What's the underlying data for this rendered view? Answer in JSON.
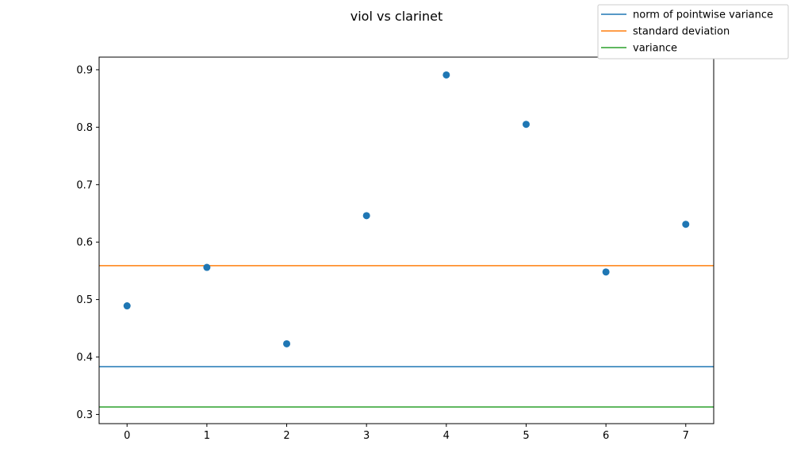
{
  "chart_data": {
    "type": "scatter",
    "title": "viol vs clarinet",
    "xlabel": "",
    "ylabel": "",
    "xlim": [
      -0.35,
      7.35
    ],
    "ylim": [
      0.284,
      0.922
    ],
    "xticks": [
      "0",
      "1",
      "2",
      "3",
      "4",
      "5",
      "6",
      "7"
    ],
    "yticks": [
      "0.3",
      "0.4",
      "0.5",
      "0.6",
      "0.7",
      "0.8",
      "0.9"
    ],
    "grid": false,
    "legend_position": "top-right",
    "points": {
      "color": "#1f77b4",
      "x": [
        0,
        1,
        2,
        3,
        4,
        5,
        6,
        7
      ],
      "y": [
        0.489,
        0.556,
        0.423,
        0.646,
        0.891,
        0.805,
        0.548,
        0.631
      ]
    },
    "hlines": [
      {
        "name": "norm of pointwise variance",
        "y": 0.383,
        "color": "#1f77b4"
      },
      {
        "name": "standard deviation",
        "y": 0.559,
        "color": "#ff7f0e"
      },
      {
        "name": "variance",
        "y": 0.313,
        "color": "#2ca02c"
      }
    ]
  }
}
